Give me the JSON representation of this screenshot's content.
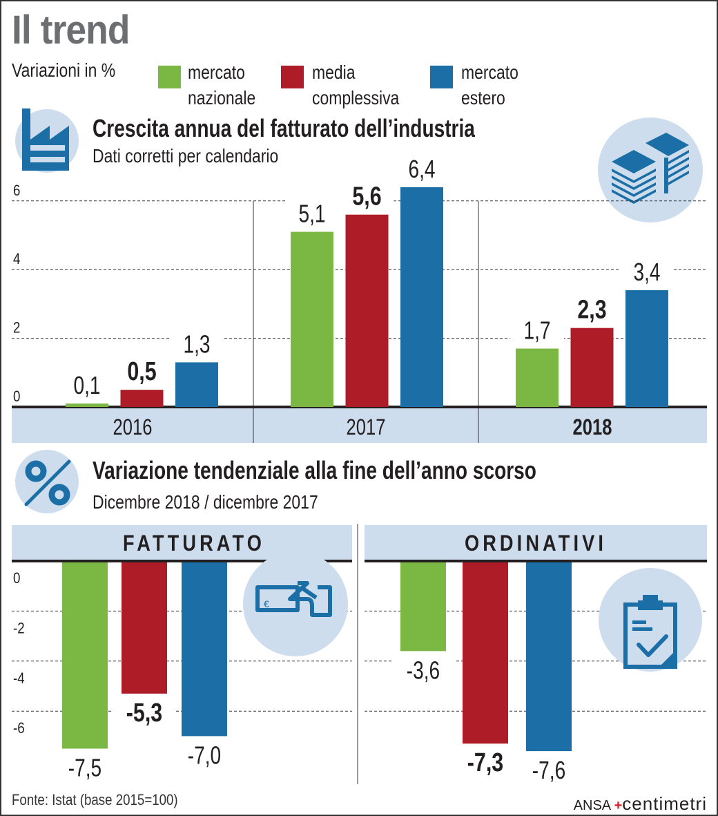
{
  "header": {
    "title": "Il trend",
    "subtitle": "Variazioni in %"
  },
  "legend": [
    {
      "line1": "mercato",
      "line2": "nazionale",
      "color": "#7ab843"
    },
    {
      "line1": "media",
      "line2": "complessiva",
      "color": "#ae1c28"
    },
    {
      "line1": "mercato",
      "line2": "estero",
      "color": "#1b6fa6"
    }
  ],
  "colors": {
    "green": "#7ab843",
    "red": "#ae1c28",
    "blue": "#1b6fa6",
    "band": "#cddded",
    "icon": "#1b6fa6",
    "title_gray": "#6d6e71",
    "brand_red": "#d6202a"
  },
  "section1": {
    "title": "Crescita annua del fatturato dell’industria",
    "subtitle": "Dati corretti per calendario",
    "icons": {
      "left": "factory-icon",
      "right": "paper-stacks-icon"
    }
  },
  "section2": {
    "title": "Variazione tendenziale alla fine dell’anno scorso",
    "subtitle": "Dicembre 2018 / dicembre 2017",
    "icons": {
      "left": "percent-icon",
      "fatturato": "hand-money-icon",
      "ordinativi": "clipboard-check-icon"
    }
  },
  "footer": {
    "source": "Fonte: Istat (base 2015=100)",
    "brand1": "ANSA",
    "brand_plus": "+",
    "brand2": "centimetri"
  },
  "chart_data": [
    {
      "type": "bar",
      "title": "Crescita annua del fatturato dell’industria",
      "subtitle": "Dati corretti per calendario",
      "xlabel": "",
      "ylabel": "Variazioni in %",
      "categories": [
        "2016",
        "2017",
        "2018"
      ],
      "bold_category": "2018",
      "ylim": [
        0,
        6.6
      ],
      "yticks": [
        0,
        2,
        4,
        6
      ],
      "ytick_labels": [
        "0",
        "2",
        "4",
        "6"
      ],
      "grid": true,
      "legend": "top",
      "series": [
        {
          "name": "mercato nazionale",
          "color": "#7ab843",
          "values": [
            0.1,
            5.1,
            1.7
          ],
          "labels": [
            "0,1",
            "5,1",
            "1,7"
          ],
          "bold": false
        },
        {
          "name": "media complessiva",
          "color": "#ae1c28",
          "values": [
            0.5,
            5.6,
            2.3
          ],
          "labels": [
            "0,5",
            "5,6",
            "2,3"
          ],
          "bold": true
        },
        {
          "name": "mercato estero",
          "color": "#1b6fa6",
          "values": [
            1.3,
            6.4,
            3.4
          ],
          "labels": [
            "1,3",
            "6,4",
            "3,4"
          ],
          "bold": false
        }
      ]
    },
    {
      "type": "bar",
      "title": "FATTURATO",
      "subtitle": "Dicembre 2018 / dicembre 2017",
      "ylim": [
        -8,
        0
      ],
      "yticks": [
        0,
        -2,
        -4,
        -6
      ],
      "ytick_labels": [
        "0",
        "-2",
        "-4",
        "-6"
      ],
      "grid": true,
      "categories": [
        "mercato nazionale",
        "media complessiva",
        "mercato estero"
      ],
      "series": [
        {
          "name": "Fatturato",
          "values": [
            -7.5,
            -5.3,
            -7.0
          ],
          "labels": [
            "-7,5",
            "-5,3",
            "-7,0"
          ],
          "bold": [
            false,
            true,
            false
          ],
          "colors": [
            "#7ab843",
            "#ae1c28",
            "#1b6fa6"
          ]
        }
      ]
    },
    {
      "type": "bar",
      "title": "ORDINATIVI",
      "subtitle": "Dicembre 2018 / dicembre 2017",
      "ylim": [
        -8,
        0
      ],
      "yticks": [
        0,
        -2,
        -4,
        -6
      ],
      "grid": true,
      "categories": [
        "mercato nazionale",
        "media complessiva",
        "mercato estero"
      ],
      "series": [
        {
          "name": "Ordinativi",
          "values": [
            -3.6,
            -7.3,
            -7.6
          ],
          "labels": [
            "-3,6",
            "-7,3",
            "-7,6"
          ],
          "bold": [
            false,
            true,
            false
          ],
          "colors": [
            "#7ab843",
            "#ae1c28",
            "#1b6fa6"
          ]
        }
      ]
    }
  ]
}
